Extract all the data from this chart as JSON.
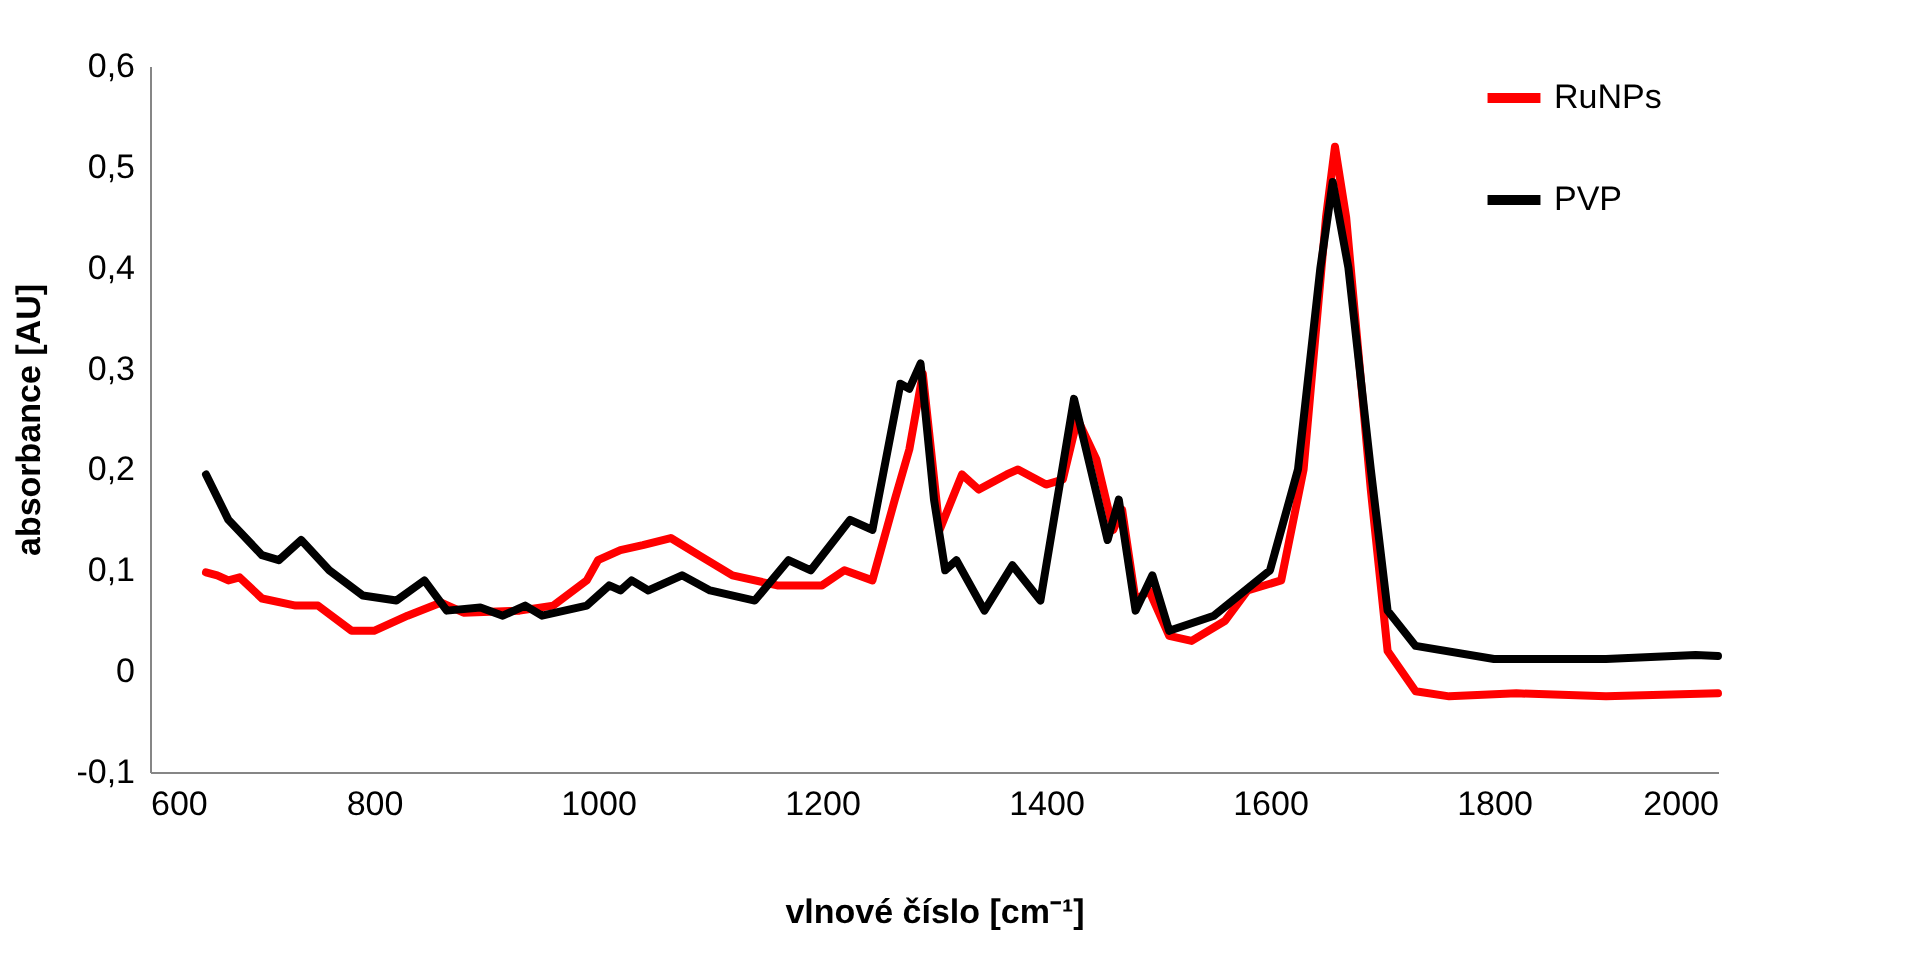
{
  "chart_data": {
    "type": "line",
    "xlabel": "vlnové číslo [cm⁻¹]",
    "ylabel": "absorbance [AU]",
    "xlim": [
      600,
      2000
    ],
    "xticks": [
      600,
      800,
      1000,
      1200,
      1400,
      1600,
      1800,
      2000
    ],
    "ylim": [
      -0.1,
      0.6
    ],
    "yticks": [
      {
        "value": -0.1,
        "label": "-0,1"
      },
      {
        "value": 0,
        "label": "0"
      },
      {
        "value": 0.1,
        "label": "0,1"
      },
      {
        "value": 0.2,
        "label": "0,2"
      },
      {
        "value": 0.3,
        "label": "0,3"
      },
      {
        "value": 0.4,
        "label": "0,4"
      },
      {
        "value": 0.5,
        "label": "0,5"
      },
      {
        "value": 0.6,
        "label": "0,6"
      }
    ],
    "legend": "right",
    "grid": false,
    "marker": "none",
    "line_style": "solid",
    "series": [
      {
        "name": "RuNPs",
        "color": "#ff0000",
        "x": [
          650,
          660,
          670,
          680,
          700,
          730,
          750,
          780,
          800,
          830,
          860,
          880,
          930,
          960,
          990,
          1000,
          1020,
          1040,
          1065,
          1090,
          1120,
          1160,
          1200,
          1220,
          1245,
          1265,
          1278,
          1290,
          1305,
          1325,
          1340,
          1365,
          1375,
          1400,
          1415,
          1428,
          1445,
          1460,
          1468,
          1480,
          1492,
          1510,
          1530,
          1560,
          1580,
          1610,
          1630,
          1650,
          1658,
          1668,
          1690,
          1705,
          1730,
          1760,
          1820,
          1900,
          2000
        ],
        "values": [
          0.098,
          0.095,
          0.09,
          0.093,
          0.072,
          0.065,
          0.065,
          0.04,
          0.04,
          0.055,
          0.068,
          0.058,
          0.06,
          0.065,
          0.09,
          0.11,
          0.12,
          0.125,
          0.132,
          0.115,
          0.095,
          0.085,
          0.085,
          0.1,
          0.09,
          0.17,
          0.22,
          0.295,
          0.14,
          0.195,
          0.18,
          0.195,
          0.2,
          0.185,
          0.19,
          0.25,
          0.21,
          0.14,
          0.16,
          0.07,
          0.08,
          0.035,
          0.03,
          0.05,
          0.08,
          0.09,
          0.2,
          0.45,
          0.52,
          0.45,
          0.18,
          0.02,
          -0.02,
          -0.025,
          -0.022,
          -0.025,
          -0.022
        ]
      },
      {
        "name": "PVP",
        "color": "#000000",
        "x": [
          650,
          670,
          700,
          715,
          735,
          760,
          790,
          820,
          845,
          865,
          895,
          915,
          935,
          950,
          990,
          1010,
          1020,
          1030,
          1045,
          1075,
          1100,
          1140,
          1170,
          1190,
          1225,
          1245,
          1270,
          1278,
          1288,
          1300,
          1310,
          1320,
          1345,
          1370,
          1395,
          1425,
          1440,
          1455,
          1465,
          1480,
          1495,
          1510,
          1550,
          1600,
          1625,
          1645,
          1656,
          1670,
          1690,
          1705,
          1730,
          1800,
          1900,
          1980,
          2000
        ],
        "values": [
          0.195,
          0.15,
          0.115,
          0.11,
          0.13,
          0.1,
          0.075,
          0.07,
          0.09,
          0.06,
          0.063,
          0.055,
          0.065,
          0.055,
          0.065,
          0.085,
          0.08,
          0.09,
          0.08,
          0.095,
          0.08,
          0.07,
          0.11,
          0.1,
          0.15,
          0.14,
          0.285,
          0.28,
          0.305,
          0.17,
          0.1,
          0.11,
          0.06,
          0.105,
          0.07,
          0.27,
          0.2,
          0.13,
          0.17,
          0.06,
          0.095,
          0.04,
          0.055,
          0.1,
          0.2,
          0.4,
          0.485,
          0.4,
          0.2,
          0.06,
          0.025,
          0.012,
          0.012,
          0.016,
          0.015
        ]
      }
    ]
  }
}
